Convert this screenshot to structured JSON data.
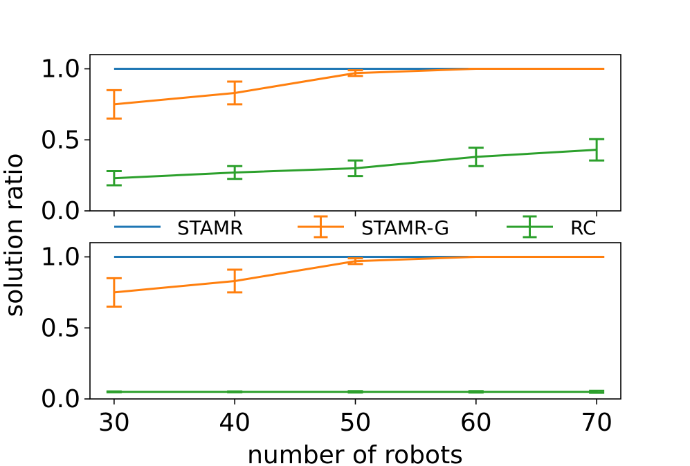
{
  "chart_data": {
    "type": "line",
    "ylabel": "solution ratio",
    "xlabel": "number of robots",
    "x": [
      30,
      40,
      50,
      60,
      70
    ],
    "xticks": [
      "30",
      "40",
      "50",
      "60",
      "70"
    ],
    "yticks": [
      "0.0",
      "0.5",
      "1.0"
    ],
    "legend": {
      "placement": "between panels",
      "entries": [
        "STAMR",
        "STAMR-G",
        "RC"
      ]
    },
    "colors": {
      "STAMR": "#1f77b4",
      "STAMR-G": "#ff7f0e",
      "RC": "#2ca02c"
    },
    "panels": [
      {
        "name": "top",
        "xlim": [
          28,
          72
        ],
        "ylim": [
          0,
          1.1
        ],
        "series": [
          {
            "name": "STAMR",
            "values": [
              1.0,
              1.0,
              1.0,
              1.0,
              1.0
            ],
            "errors": null
          },
          {
            "name": "STAMR-G",
            "values": [
              0.75,
              0.83,
              0.97,
              1.0,
              1.0
            ],
            "errors": [
              0.1,
              0.08,
              0.02,
              0.0,
              0.0
            ]
          },
          {
            "name": "RC",
            "values": [
              0.23,
              0.27,
              0.3,
              0.38,
              0.43
            ],
            "errors": [
              0.05,
              0.045,
              0.055,
              0.065,
              0.075
            ]
          }
        ]
      },
      {
        "name": "bottom",
        "xlim": [
          28,
          72
        ],
        "ylim": [
          0,
          1.1
        ],
        "series": [
          {
            "name": "STAMR",
            "values": [
              1.0,
              1.0,
              1.0,
              1.0,
              1.0
            ],
            "errors": null
          },
          {
            "name": "STAMR-G",
            "values": [
              0.75,
              0.83,
              0.97,
              1.0,
              1.0
            ],
            "errors": [
              0.1,
              0.08,
              0.02,
              0.0,
              0.0
            ]
          },
          {
            "name": "RC",
            "values": [
              0.05,
              0.05,
              0.05,
              0.05,
              0.05
            ],
            "errors": [
              0.003,
              0.003,
              0.005,
              0.005,
              0.007
            ]
          }
        ]
      }
    ]
  }
}
